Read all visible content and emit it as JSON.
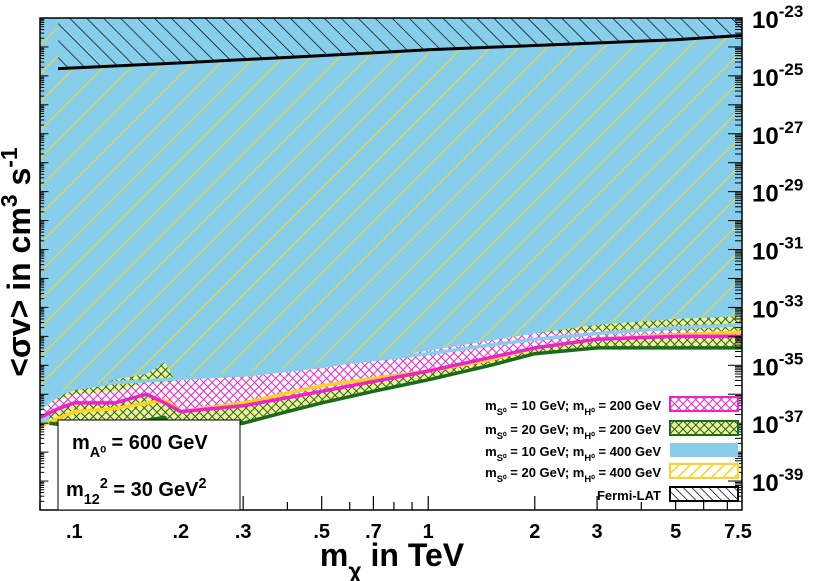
{
  "chart_data": {
    "type": "area",
    "title": "",
    "x_scale": "log",
    "y_scale": "log",
    "xlim": [
      0.08,
      7.7
    ],
    "ylim": [
      1e-40,
      1e-23
    ],
    "xlabel_parts": [
      "m",
      "χ",
      " in TeV"
    ],
    "ylabel_parts": [
      "<σv> in cm",
      "3",
      " s",
      "-1"
    ],
    "x_ticks": [
      {
        "value": 0.1,
        "label": ".1"
      },
      {
        "value": 0.2,
        "label": ".2"
      },
      {
        "value": 0.3,
        "label": ".3"
      },
      {
        "value": 0.5,
        "label": ".5"
      },
      {
        "value": 0.7,
        "label": ".7"
      },
      {
        "value": 1,
        "label": "1"
      },
      {
        "value": 2,
        "label": "2"
      },
      {
        "value": 3,
        "label": "3"
      },
      {
        "value": 5,
        "label": "5"
      },
      {
        "value": 7.5,
        "label": "7.5"
      }
    ],
    "y_ticks": [
      {
        "exp": -23,
        "base": "10",
        "sup": "-23"
      },
      {
        "exp": -25,
        "base": "10",
        "sup": "-25"
      },
      {
        "exp": -27,
        "base": "10",
        "sup": "-27"
      },
      {
        "exp": -29,
        "base": "10",
        "sup": "-29"
      },
      {
        "exp": -31,
        "base": "10",
        "sup": "-31"
      },
      {
        "exp": -33,
        "base": "10",
        "sup": "-33"
      },
      {
        "exp": -35,
        "base": "10",
        "sup": "-35"
      },
      {
        "exp": -37,
        "base": "10",
        "sup": "-37"
      },
      {
        "exp": -39,
        "base": "10",
        "sup": "-39"
      }
    ],
    "colors": {
      "s10_h200": "#ee22cc",
      "s20_h200": "#1a6b1a",
      "s10_h400": "#87ceeb",
      "s20_h400": "#ffd21f",
      "fermi": "#000000"
    },
    "series": [
      {
        "key": "fermi",
        "legend_parts": [
          "Fermi-LAT"
        ],
        "pattern": "hatch-black",
        "x": [
          0.09,
          0.2,
          0.5,
          1,
          2,
          5,
          7.7
        ],
        "lower_log10": [
          -24.75,
          -24.55,
          -24.3,
          -24.1,
          -23.95,
          -23.75,
          -23.6
        ],
        "upper_log10": [
          -23,
          -23,
          -23,
          -23,
          -23,
          -23,
          -23
        ]
      },
      {
        "key": "s10_h400",
        "legend_parts": [
          "m",
          "S⁰",
          " = 10 GeV; m",
          "H⁰",
          " = 400 GeV"
        ],
        "pattern": "solid-lightblue",
        "x": [
          0.08,
          0.09,
          0.1,
          0.13,
          0.18,
          0.2,
          0.3,
          0.5,
          1,
          1.5,
          2,
          3,
          5,
          7.7
        ],
        "lower_log10": [
          -36.5,
          -36.0,
          -35.8,
          -35.6,
          -35.5,
          -35.45,
          -35.3,
          -35.0,
          -34.6,
          -34.3,
          -34.1,
          -33.9,
          -33.7,
          -33.6
        ],
        "upper_log10": [
          -23,
          -23,
          -23,
          -23,
          -23,
          -23,
          -23,
          -23,
          -23,
          -23,
          -23,
          -23,
          -23,
          -23
        ]
      },
      {
        "key": "s20_h400",
        "legend_parts": [
          "m",
          "S⁰",
          " = 20 GeV; m",
          "H⁰",
          " = 400 GeV"
        ],
        "pattern": "hatch-yellow",
        "x": [
          0.08,
          0.1,
          0.13,
          0.18,
          0.2,
          0.3,
          0.5,
          1,
          1.5,
          2,
          3,
          5,
          7.7
        ],
        "lower_log10": [
          -37.1,
          -36.6,
          -36.5,
          -36.2,
          -36.6,
          -36.3,
          -35.7,
          -35.2,
          -34.8,
          -34.4,
          -34.1,
          -33.95,
          -33.85
        ],
        "upper_log10": [
          -23,
          -23,
          -23,
          -23,
          -23,
          -23,
          -23,
          -23,
          -23,
          -23,
          -23,
          -23,
          -23
        ]
      },
      {
        "key": "s20_h200",
        "legend_parts": [
          "m",
          "S⁰",
          " = 20 GeV; m",
          "H⁰",
          " = 200 GeV"
        ],
        "pattern": "crosshatch-green",
        "x": [
          0.085,
          0.1,
          0.13,
          0.16,
          0.18,
          0.19,
          0.2,
          0.25,
          0.3,
          0.4,
          0.5,
          0.7,
          1,
          1.5,
          2,
          3,
          5,
          7.7
        ],
        "lower_log10": [
          -37.0,
          -37.1,
          -37.2,
          -36.9,
          -36.8,
          -37.3,
          -37.2,
          -37.1,
          -37.0,
          -36.6,
          -36.3,
          -35.9,
          -35.5,
          -35.0,
          -34.6,
          -34.4,
          -34.4,
          -34.4
        ],
        "upper_log10": [
          -36.3,
          -35.8,
          -35.5,
          -35.3,
          -34.9,
          -35.4,
          -35.6,
          -35.5,
          -35.5,
          -35.7,
          -35.4,
          -35.0,
          -34.7,
          -34.4,
          -33.9,
          -33.6,
          -33.4,
          -33.3
        ]
      },
      {
        "key": "s10_h200",
        "legend_parts": [
          "m",
          "S⁰",
          " = 10 GeV; m",
          "H⁰",
          " = 200 GeV"
        ],
        "pattern": "crosshatch-magenta",
        "x": [
          0.08,
          0.09,
          0.1,
          0.13,
          0.16,
          0.18,
          0.2,
          0.3,
          0.5,
          1,
          2,
          3,
          5,
          7.7
        ],
        "lower_log10": [
          -36.8,
          -36.5,
          -36.3,
          -36.3,
          -36.0,
          -36.3,
          -36.6,
          -36.4,
          -35.9,
          -35.2,
          -34.4,
          -34.1,
          -34.0,
          -34.0
        ],
        "upper_log10": [
          -36.5,
          -36.2,
          -36.0,
          -35.9,
          -35.6,
          -35.6,
          -35.5,
          -35.4,
          -35.1,
          -34.5,
          -33.9,
          -33.8,
          -33.8,
          -33.8
        ]
      }
    ],
    "legend_order": [
      "s10_h200",
      "s20_h200",
      "s10_h400",
      "s20_h400",
      "fermi"
    ],
    "annotation": {
      "line1_parts": [
        "m",
        "A⁰",
        " = 600 GeV"
      ],
      "line2_parts": [
        "m",
        "12",
        "2",
        " = 30 GeV",
        "2"
      ]
    },
    "legend_placement": "bottom-right",
    "grid": false
  }
}
